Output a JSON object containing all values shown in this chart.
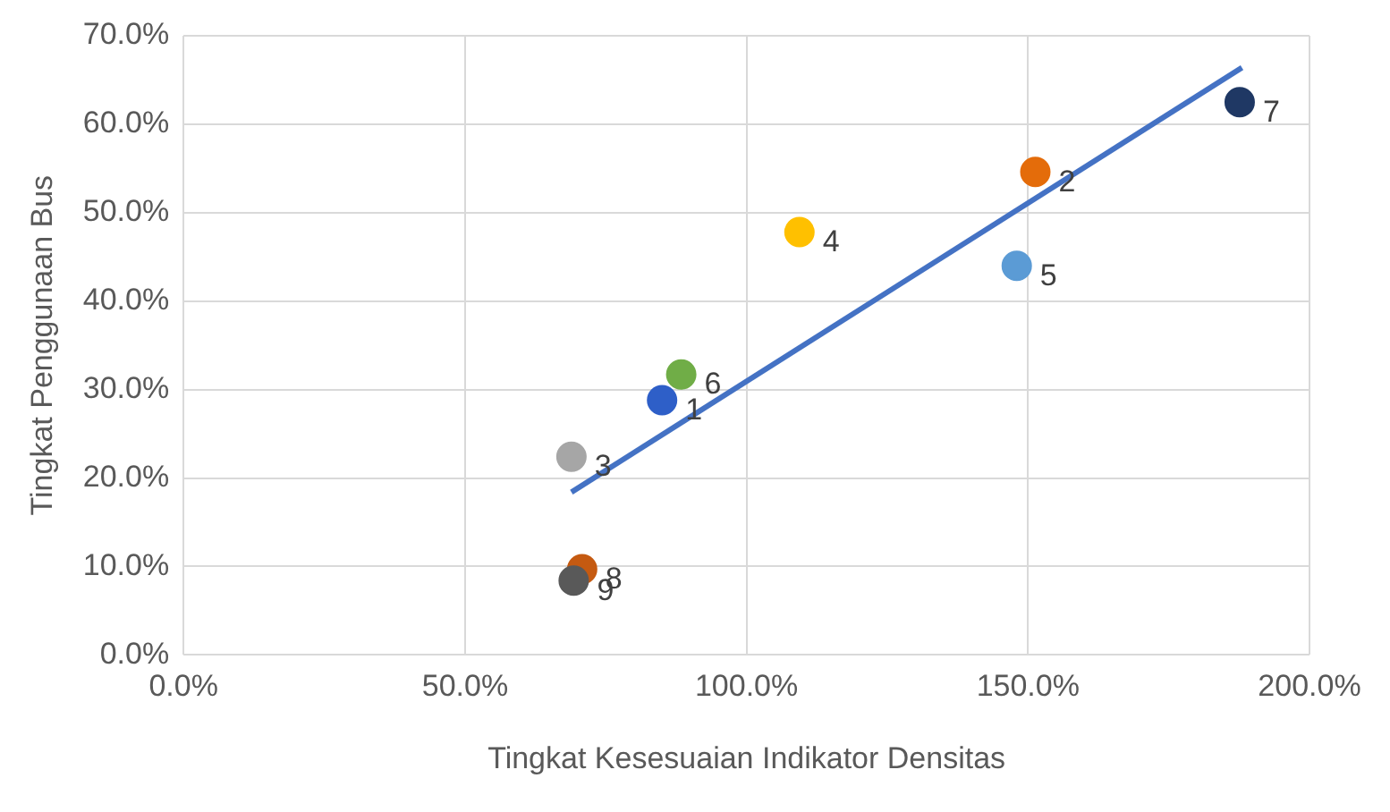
{
  "chart_data": {
    "type": "scatter",
    "xlabel": "Tingkat Kesesuaian Indikator Densitas",
    "ylabel": "Tingkat Penggunaan Bus",
    "xlim": [
      0,
      200
    ],
    "xticks": [
      {
        "value": 0,
        "label": "0.0%"
      },
      {
        "value": 50,
        "label": "50.0%"
      },
      {
        "value": 100,
        "label": "100.0%"
      },
      {
        "value": 150,
        "label": "150.0%"
      },
      {
        "value": 200,
        "label": "200.0%"
      }
    ],
    "ylim": [
      0,
      70
    ],
    "yticks": [
      {
        "value": 0,
        "label": "0.0%"
      },
      {
        "value": 10,
        "label": "10.0%"
      },
      {
        "value": 20,
        "label": "20.0%"
      },
      {
        "value": 30,
        "label": "30.0%"
      },
      {
        "value": 40,
        "label": "40.0%"
      },
      {
        "value": 50,
        "label": "50.0%"
      },
      {
        "value": 60,
        "label": "60.0%"
      },
      {
        "value": 70,
        "label": "70.0%"
      }
    ],
    "grid": true,
    "legend": false,
    "series": [
      {
        "marker": "circle",
        "x": [
          85,
          151.3,
          68.9,
          109.4,
          148,
          88.4,
          187.6,
          70.8,
          69.3
        ],
        "values": [
          28.8,
          54.6,
          22.4,
          47.8,
          44,
          31.7,
          62.5,
          9.7,
          8.4
        ],
        "colors": [
          "#2e5fc8",
          "#e46c0a",
          "#a6a6a6",
          "#ffc000",
          "#5b9bd5",
          "#70ad47",
          "#1f3864",
          "#c55a11",
          "#595959"
        ]
      },
      {
        "type": "line",
        "marker": "none",
        "color": "#4472c4",
        "x": [
          68.9,
          188
        ],
        "values": [
          18.4,
          66.4
        ]
      }
    ],
    "annotations": [
      {
        "text": "1",
        "x": 85,
        "y": 28.8
      },
      {
        "text": "2",
        "x": 151.3,
        "y": 54.6
      },
      {
        "text": "3",
        "x": 68.9,
        "y": 22.4
      },
      {
        "text": "4",
        "x": 109.4,
        "y": 47.8
      },
      {
        "text": "5",
        "x": 148,
        "y": 44
      },
      {
        "text": "6",
        "x": 88.4,
        "y": 31.7
      },
      {
        "text": "7",
        "x": 187.6,
        "y": 62.5
      },
      {
        "text": "8",
        "x": 70.8,
        "y": 9.7
      },
      {
        "text": "9",
        "x": 69.3,
        "y": 8.4
      }
    ]
  }
}
